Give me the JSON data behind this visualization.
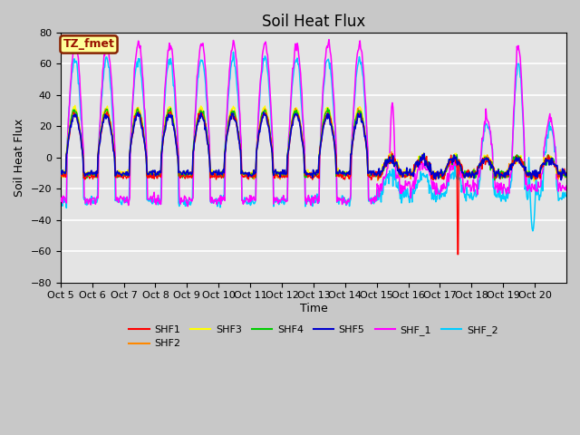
{
  "title": "Soil Heat Flux",
  "ylabel": "Soil Heat Flux",
  "xlabel": "Time",
  "ylim": [
    -80,
    80
  ],
  "tick_labels": [
    "Oct 5",
    "Oct 6",
    "Oct 7",
    "Oct 8",
    "Oct 9",
    "Oct 10",
    "Oct 11",
    "Oct 12",
    "Oct 13",
    "Oct 14",
    "Oct 15",
    "Oct 16",
    "Oct 17",
    "Oct 18",
    "Oct 19",
    "Oct 20"
  ],
  "series_colors": {
    "SHF1": "#ff0000",
    "SHF2": "#ff8800",
    "SHF3": "#ffff00",
    "SHF4": "#00cc00",
    "SHF5": "#0000cc",
    "SHF_1": "#ff00ff",
    "SHF_2": "#00ccff"
  },
  "annotation_text": "TZ_fmet",
  "annotation_bg": "#ffff99",
  "annotation_border": "#882200",
  "title_fontsize": 12
}
